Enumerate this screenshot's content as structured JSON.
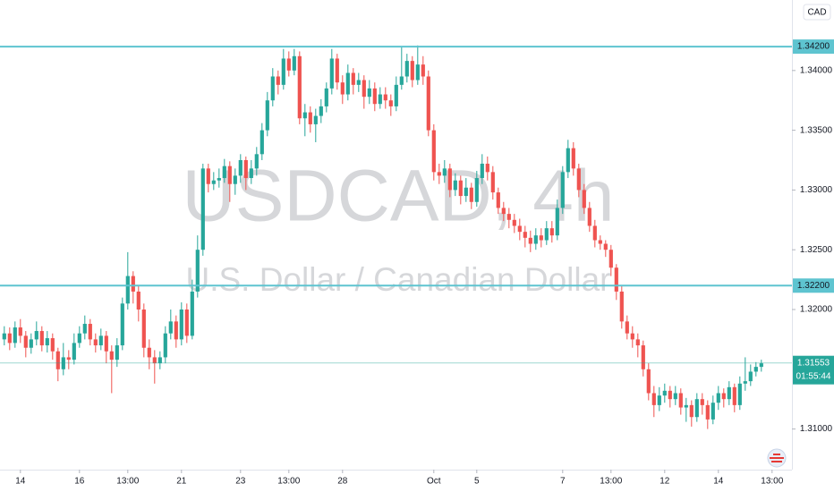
{
  "chart_data": {
    "type": "candlestick",
    "symbol_watermark": "USDCAD, 4h",
    "description_watermark": "U.S. Dollar / Canadian Dollar",
    "currency": "CAD",
    "up_color": "#26a69a",
    "down_color": "#ef5350",
    "ylim": [
      1.3066,
      1.3459
    ],
    "yticks": [
      {
        "value": 1.31,
        "label": "1.31000"
      },
      {
        "value": 1.32,
        "label": "1.32000"
      },
      {
        "value": 1.325,
        "label": "1.32500"
      },
      {
        "value": 1.33,
        "label": "1.33000"
      },
      {
        "value": 1.335,
        "label": "1.33500"
      },
      {
        "value": 1.34,
        "label": "1.34000"
      }
    ],
    "xlim": [
      -0.8,
      146.7
    ],
    "xticks": [
      {
        "value": 3,
        "label": "14"
      },
      {
        "value": 14,
        "label": "16"
      },
      {
        "value": 23,
        "label": "13:00"
      },
      {
        "value": 33,
        "label": "21"
      },
      {
        "value": 44,
        "label": "23"
      },
      {
        "value": 53,
        "label": "13:00"
      },
      {
        "value": 63,
        "label": "28"
      },
      {
        "value": 80,
        "label": "Oct"
      },
      {
        "value": 88,
        "label": "5"
      },
      {
        "value": 104,
        "label": "7"
      },
      {
        "value": 113,
        "label": "13:00"
      },
      {
        "value": 123,
        "label": "12"
      },
      {
        "value": 133,
        "label": "14"
      },
      {
        "value": 143,
        "label": "13:00"
      }
    ],
    "levels": [
      {
        "value": 1.342,
        "label": "1.34200"
      },
      {
        "value": 1.322,
        "label": "1.32200"
      }
    ],
    "level_color": "#5ec4d0",
    "last_price": 1.31553,
    "countdown": "01:55:44",
    "ohlc": [
      [
        1.3175,
        1.3186,
        1.317,
        1.318
      ],
      [
        1.318,
        1.3185,
        1.3166,
        1.3172
      ],
      [
        1.3172,
        1.319,
        1.3168,
        1.3185
      ],
      [
        1.3185,
        1.3192,
        1.3172,
        1.3178
      ],
      [
        1.3178,
        1.3182,
        1.316,
        1.3168
      ],
      [
        1.3168,
        1.318,
        1.3163,
        1.3175
      ],
      [
        1.3175,
        1.319,
        1.317,
        1.3182
      ],
      [
        1.3182,
        1.3186,
        1.3165,
        1.317
      ],
      [
        1.317,
        1.3182,
        1.3164,
        1.3176
      ],
      [
        1.3176,
        1.318,
        1.3158,
        1.3165
      ],
      [
        1.3165,
        1.3168,
        1.314,
        1.315
      ],
      [
        1.315,
        1.3172,
        1.3145,
        1.316
      ],
      [
        1.316,
        1.3166,
        1.315,
        1.3158
      ],
      [
        1.3158,
        1.318,
        1.3154,
        1.3172
      ],
      [
        1.3172,
        1.3186,
        1.3168,
        1.318
      ],
      [
        1.318,
        1.3195,
        1.3175,
        1.3188
      ],
      [
        1.3188,
        1.3192,
        1.317,
        1.3175
      ],
      [
        1.3175,
        1.318,
        1.3164,
        1.317
      ],
      [
        1.317,
        1.3184,
        1.3166,
        1.3178
      ],
      [
        1.3178,
        1.3182,
        1.3155,
        1.3165
      ],
      [
        1.3165,
        1.317,
        1.313,
        1.3158
      ],
      [
        1.3158,
        1.3176,
        1.3152,
        1.317
      ],
      [
        1.317,
        1.321,
        1.3166,
        1.3205
      ],
      [
        1.3205,
        1.3248,
        1.32,
        1.3228
      ],
      [
        1.3228,
        1.3232,
        1.3205,
        1.3215
      ],
      [
        1.3215,
        1.322,
        1.319,
        1.32
      ],
      [
        1.32,
        1.3205,
        1.316,
        1.3168
      ],
      [
        1.3168,
        1.3175,
        1.315,
        1.316
      ],
      [
        1.316,
        1.3166,
        1.3138,
        1.3155
      ],
      [
        1.3155,
        1.3165,
        1.315,
        1.316
      ],
      [
        1.316,
        1.3186,
        1.3155,
        1.318
      ],
      [
        1.318,
        1.32,
        1.3175,
        1.319
      ],
      [
        1.319,
        1.3195,
        1.3168,
        1.3175
      ],
      [
        1.3175,
        1.3206,
        1.317,
        1.32
      ],
      [
        1.32,
        1.3205,
        1.3172,
        1.3178
      ],
      [
        1.3178,
        1.3225,
        1.3175,
        1.3215
      ],
      [
        1.3215,
        1.3262,
        1.321,
        1.325
      ],
      [
        1.325,
        1.3322,
        1.3245,
        1.3318
      ],
      [
        1.3318,
        1.3322,
        1.3298,
        1.3305
      ],
      [
        1.3305,
        1.3315,
        1.33,
        1.3308
      ],
      [
        1.3308,
        1.3318,
        1.3302,
        1.331
      ],
      [
        1.331,
        1.3326,
        1.3306,
        1.332
      ],
      [
        1.332,
        1.3324,
        1.329,
        1.3305
      ],
      [
        1.3305,
        1.3318,
        1.3296,
        1.3312
      ],
      [
        1.3312,
        1.333,
        1.3306,
        1.3325
      ],
      [
        1.3325,
        1.3328,
        1.33,
        1.331
      ],
      [
        1.331,
        1.3325,
        1.3305,
        1.3318
      ],
      [
        1.3318,
        1.3336,
        1.3312,
        1.333
      ],
      [
        1.333,
        1.3356,
        1.3325,
        1.335
      ],
      [
        1.335,
        1.3382,
        1.3345,
        1.3375
      ],
      [
        1.3375,
        1.3402,
        1.337,
        1.3395
      ],
      [
        1.3395,
        1.34,
        1.338,
        1.3388
      ],
      [
        1.3388,
        1.3418,
        1.3384,
        1.341
      ],
      [
        1.341,
        1.3416,
        1.3395,
        1.34
      ],
      [
        1.34,
        1.3418,
        1.3396,
        1.3412
      ],
      [
        1.3412,
        1.3416,
        1.3355,
        1.336
      ],
      [
        1.336,
        1.3372,
        1.3345,
        1.3365
      ],
      [
        1.3365,
        1.337,
        1.3348,
        1.3355
      ],
      [
        1.3355,
        1.3368,
        1.334,
        1.3362
      ],
      [
        1.3362,
        1.3376,
        1.3356,
        1.337
      ],
      [
        1.337,
        1.339,
        1.3365,
        1.3385
      ],
      [
        1.3385,
        1.3418,
        1.338,
        1.341
      ],
      [
        1.341,
        1.3414,
        1.3384,
        1.339
      ],
      [
        1.339,
        1.3396,
        1.3372,
        1.338
      ],
      [
        1.338,
        1.3405,
        1.3375,
        1.3398
      ],
      [
        1.3398,
        1.3402,
        1.338,
        1.3388
      ],
      [
        1.3388,
        1.3398,
        1.3382,
        1.3392
      ],
      [
        1.3392,
        1.3396,
        1.3368,
        1.3378
      ],
      [
        1.3378,
        1.3392,
        1.3372,
        1.3385
      ],
      [
        1.3385,
        1.339,
        1.3366,
        1.3372
      ],
      [
        1.3372,
        1.3386,
        1.3368,
        1.338
      ],
      [
        1.338,
        1.3386,
        1.3368,
        1.3375
      ],
      [
        1.3375,
        1.338,
        1.3362,
        1.337
      ],
      [
        1.337,
        1.3395,
        1.3366,
        1.3388
      ],
      [
        1.3388,
        1.342,
        1.3384,
        1.3395
      ],
      [
        1.3395,
        1.3414,
        1.339,
        1.3408
      ],
      [
        1.3408,
        1.3412,
        1.3386,
        1.3392
      ],
      [
        1.3392,
        1.3421,
        1.3388,
        1.3405
      ],
      [
        1.3405,
        1.3412,
        1.3388,
        1.3395
      ],
      [
        1.3395,
        1.34,
        1.3345,
        1.335
      ],
      [
        1.335,
        1.3355,
        1.3308,
        1.3315
      ],
      [
        1.3315,
        1.3322,
        1.3305,
        1.3312
      ],
      [
        1.3312,
        1.3325,
        1.3306,
        1.3318
      ],
      [
        1.3318,
        1.3322,
        1.3294,
        1.33
      ],
      [
        1.33,
        1.3314,
        1.3295,
        1.3308
      ],
      [
        1.3308,
        1.3312,
        1.3288,
        1.3295
      ],
      [
        1.3295,
        1.331,
        1.329,
        1.3302
      ],
      [
        1.3302,
        1.3306,
        1.3284,
        1.329
      ],
      [
        1.329,
        1.3316,
        1.3286,
        1.331
      ],
      [
        1.331,
        1.333,
        1.3305,
        1.3322
      ],
      [
        1.3322,
        1.3328,
        1.3308,
        1.3315
      ],
      [
        1.3315,
        1.332,
        1.3292,
        1.3298
      ],
      [
        1.3298,
        1.3302,
        1.328,
        1.3285
      ],
      [
        1.3285,
        1.329,
        1.3274,
        1.328
      ],
      [
        1.328,
        1.3285,
        1.3268,
        1.3275
      ],
      [
        1.3275,
        1.328,
        1.3264,
        1.327
      ],
      [
        1.327,
        1.3276,
        1.3258,
        1.3265
      ],
      [
        1.3265,
        1.327,
        1.3252,
        1.326
      ],
      [
        1.326,
        1.3266,
        1.3248,
        1.3255
      ],
      [
        1.3255,
        1.3268,
        1.325,
        1.3262
      ],
      [
        1.3262,
        1.3268,
        1.3252,
        1.3258
      ],
      [
        1.3258,
        1.3274,
        1.3254,
        1.3268
      ],
      [
        1.3268,
        1.3274,
        1.3256,
        1.3262
      ],
      [
        1.3262,
        1.3292,
        1.3258,
        1.3285
      ],
      [
        1.3285,
        1.332,
        1.328,
        1.3315
      ],
      [
        1.3315,
        1.3342,
        1.331,
        1.3335
      ],
      [
        1.3335,
        1.334,
        1.3312,
        1.3318
      ],
      [
        1.3318,
        1.3322,
        1.3294,
        1.33
      ],
      [
        1.33,
        1.3305,
        1.328,
        1.3285
      ],
      [
        1.3285,
        1.329,
        1.3265,
        1.327
      ],
      [
        1.327,
        1.3275,
        1.3252,
        1.3258
      ],
      [
        1.3258,
        1.3262,
        1.325,
        1.3255
      ],
      [
        1.3255,
        1.3258,
        1.3244,
        1.325
      ],
      [
        1.325,
        1.3254,
        1.3228,
        1.3235
      ],
      [
        1.3235,
        1.3238,
        1.3208,
        1.3215
      ],
      [
        1.3215,
        1.322,
        1.3184,
        1.319
      ],
      [
        1.319,
        1.3195,
        1.3175,
        1.318
      ],
      [
        1.318,
        1.3186,
        1.3168,
        1.3175
      ],
      [
        1.3175,
        1.318,
        1.316,
        1.317
      ],
      [
        1.317,
        1.3174,
        1.3144,
        1.315
      ],
      [
        1.315,
        1.3155,
        1.3124,
        1.313
      ],
      [
        1.313,
        1.3136,
        1.311,
        1.312
      ],
      [
        1.312,
        1.3135,
        1.3115,
        1.3128
      ],
      [
        1.3128,
        1.3138,
        1.3122,
        1.3132
      ],
      [
        1.3132,
        1.3136,
        1.3118,
        1.3125
      ],
      [
        1.3125,
        1.3136,
        1.312,
        1.313
      ],
      [
        1.313,
        1.3134,
        1.3112,
        1.3118
      ],
      [
        1.3118,
        1.3126,
        1.3106,
        1.312
      ],
      [
        1.312,
        1.3124,
        1.3102,
        1.311
      ],
      [
        1.311,
        1.313,
        1.3106,
        1.3125
      ],
      [
        1.3125,
        1.313,
        1.3112,
        1.312
      ],
      [
        1.312,
        1.3124,
        1.31,
        1.3108
      ],
      [
        1.3108,
        1.3128,
        1.3104,
        1.3122
      ],
      [
        1.3122,
        1.3136,
        1.3116,
        1.313
      ],
      [
        1.313,
        1.3134,
        1.3118,
        1.3125
      ],
      [
        1.3125,
        1.314,
        1.312,
        1.3135
      ],
      [
        1.3135,
        1.3138,
        1.3114,
        1.312
      ],
      [
        1.312,
        1.3144,
        1.3116,
        1.3138
      ],
      [
        1.3138,
        1.316,
        1.3132,
        1.314
      ],
      [
        1.314,
        1.3154,
        1.3136,
        1.3148
      ],
      [
        1.3148,
        1.3156,
        1.3144,
        1.3152
      ],
      [
        1.3152,
        1.3158,
        1.3148,
        1.3155
      ]
    ]
  }
}
